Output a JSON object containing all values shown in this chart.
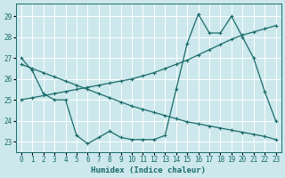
{
  "xlabel": "Humidex (Indice chaleur)",
  "bg_color": "#cce8ec",
  "grid_color": "#ffffff",
  "line_color": "#1a6b6b",
  "xlim": [
    -0.5,
    23.5
  ],
  "ylim": [
    22.5,
    29.6
  ],
  "yticks": [
    23,
    24,
    25,
    26,
    27,
    28,
    29
  ],
  "xticks": [
    0,
    1,
    2,
    3,
    4,
    5,
    6,
    7,
    8,
    9,
    10,
    11,
    12,
    13,
    14,
    15,
    16,
    17,
    18,
    19,
    20,
    21,
    22,
    23
  ],
  "line1_x": [
    0,
    1,
    2,
    3,
    4,
    5,
    6,
    7,
    8,
    9,
    10,
    11,
    12,
    13,
    14,
    15,
    16,
    17,
    18,
    19,
    20,
    21,
    22,
    23
  ],
  "line1_y": [
    27.0,
    26.4,
    25.3,
    25.0,
    25.0,
    23.3,
    22.9,
    23.2,
    23.5,
    23.2,
    23.1,
    23.1,
    23.1,
    23.3,
    25.5,
    27.7,
    29.1,
    28.2,
    28.2,
    29.0,
    28.0,
    27.0,
    25.4,
    24.0
  ],
  "line2_x": [
    0,
    1,
    2,
    3,
    4,
    5,
    6,
    7,
    8,
    9,
    10,
    11,
    12,
    13,
    14,
    15,
    16,
    17,
    18,
    19,
    20,
    21,
    22,
    23
  ],
  "line2_y": [
    26.7,
    26.5,
    26.3,
    26.1,
    25.9,
    25.7,
    25.5,
    25.3,
    25.1,
    24.9,
    24.7,
    24.55,
    24.4,
    24.25,
    24.1,
    23.95,
    23.85,
    23.75,
    23.65,
    23.55,
    23.45,
    23.35,
    23.25,
    23.1
  ],
  "line3_x": [
    0,
    1,
    2,
    3,
    4,
    5,
    6,
    7,
    8,
    9,
    10,
    11,
    12,
    13,
    14,
    15,
    16,
    17,
    18,
    19,
    20,
    21,
    22,
    23
  ],
  "line3_y": [
    25.0,
    25.1,
    25.2,
    25.3,
    25.4,
    25.5,
    25.6,
    25.7,
    25.8,
    25.9,
    26.0,
    26.15,
    26.3,
    26.5,
    26.7,
    26.9,
    27.15,
    27.4,
    27.65,
    27.9,
    28.1,
    28.25,
    28.4,
    28.55
  ]
}
